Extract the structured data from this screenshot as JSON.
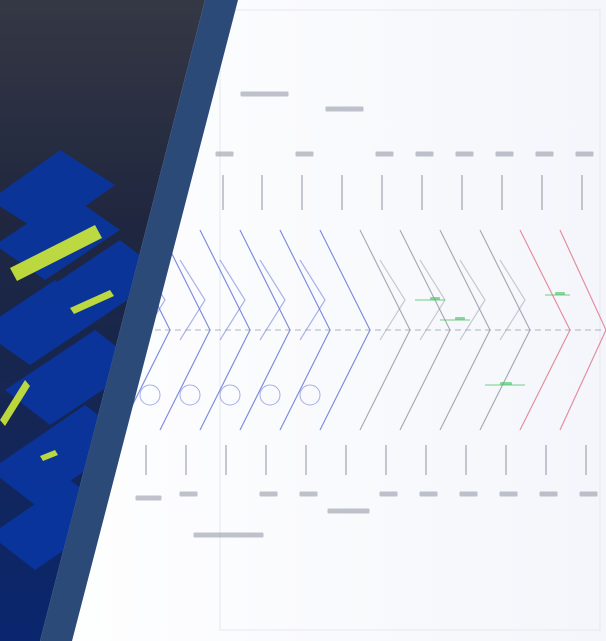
{
  "colors": {
    "frame_blue": "#2c4a78",
    "panel_top": "#3a3d4a",
    "panel_bottom": "#0b2a78",
    "neon_green": "#d7f542",
    "drawing_blue": "#5f6ec9",
    "drawing_gray": "#8d93a1",
    "drawing_green": "#4fc36a",
    "drawing_red": "#e06b7f"
  },
  "drawing": {
    "label_rows": 10
  }
}
